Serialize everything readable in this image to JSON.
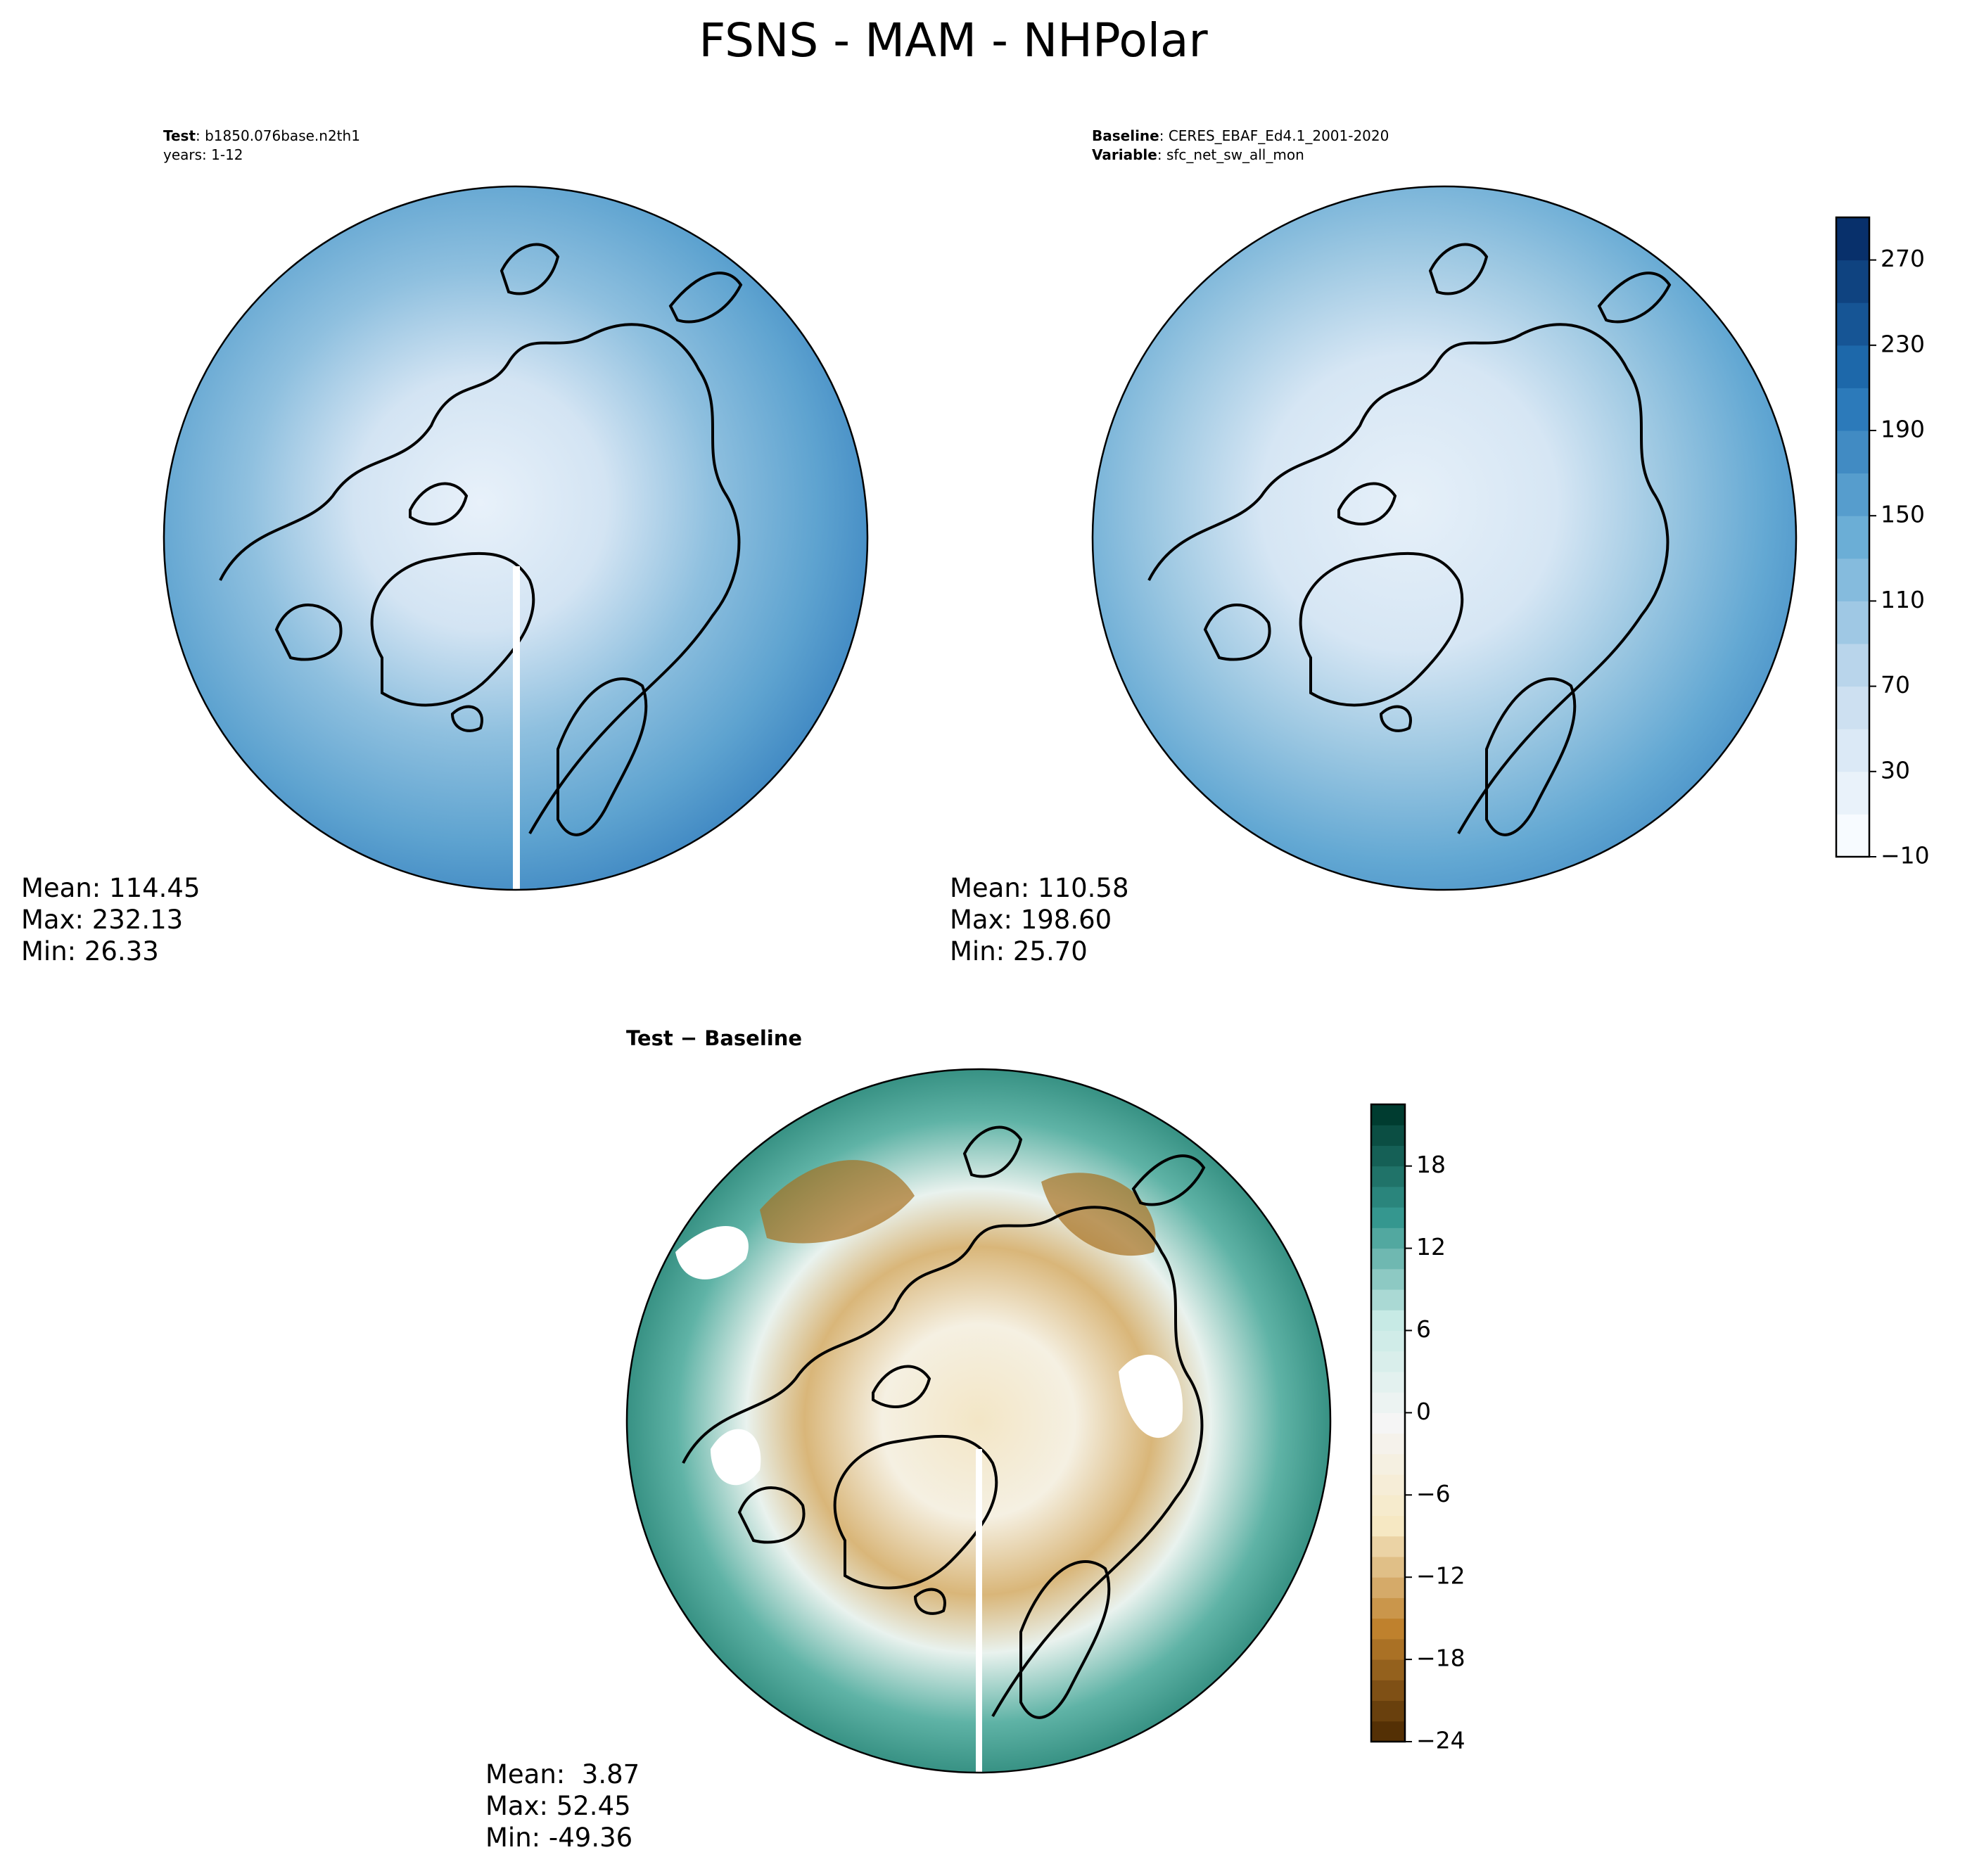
{
  "title": "FSNS - MAM - NHPolar",
  "panels": [
    {
      "header": [
        {
          "label": "Test",
          "text": ": b1850.076base.n2th1"
        },
        {
          "text": "years: 1-12"
        }
      ],
      "stats": [
        "Mean: 114.45",
        "Max: 232.13",
        "Min: 26.33"
      ]
    },
    {
      "header": [
        {
          "label": "Baseline",
          "text": ": CERES_EBAF_Ed4.1_2001-2020"
        },
        {
          "label": "Variable",
          "text": ": sfc_net_sw_all_mon"
        }
      ],
      "stats": [
        "Mean: 110.58",
        "Max: 198.60",
        "Min: 25.70"
      ]
    },
    {
      "header": [
        {
          "label": "Test − Baseline"
        }
      ],
      "stats": [
        "Mean:  3.87",
        "Max: 52.45",
        "Min: -49.36"
      ]
    }
  ],
  "colorbars": [
    {
      "lim": [
        -10,
        290
      ],
      "bands": 15,
      "colors": [
        "#f7fbff",
        "#c6dbef",
        "#6baed6",
        "#2171b5",
        "#08306b"
      ],
      "ticks": [
        {
          "value": -10,
          "label": "−10"
        },
        30,
        70,
        110,
        150,
        190,
        230,
        270
      ]
    },
    {
      "lim": [
        -24,
        22.5
      ],
      "bands": 31,
      "colors": [
        "#543005",
        "#bf812d",
        "#f6e8c3",
        "#f5f5f5",
        "#c7eae5",
        "#35978f",
        "#003c30"
      ],
      "ticks": [
        {
          "value": -24,
          "label": "−24"
        },
        {
          "value": -18,
          "label": "−18"
        },
        {
          "value": -12,
          "label": "−12"
        },
        {
          "value": -6,
          "label": "−6"
        },
        0,
        6,
        12,
        18
      ]
    }
  ]
}
